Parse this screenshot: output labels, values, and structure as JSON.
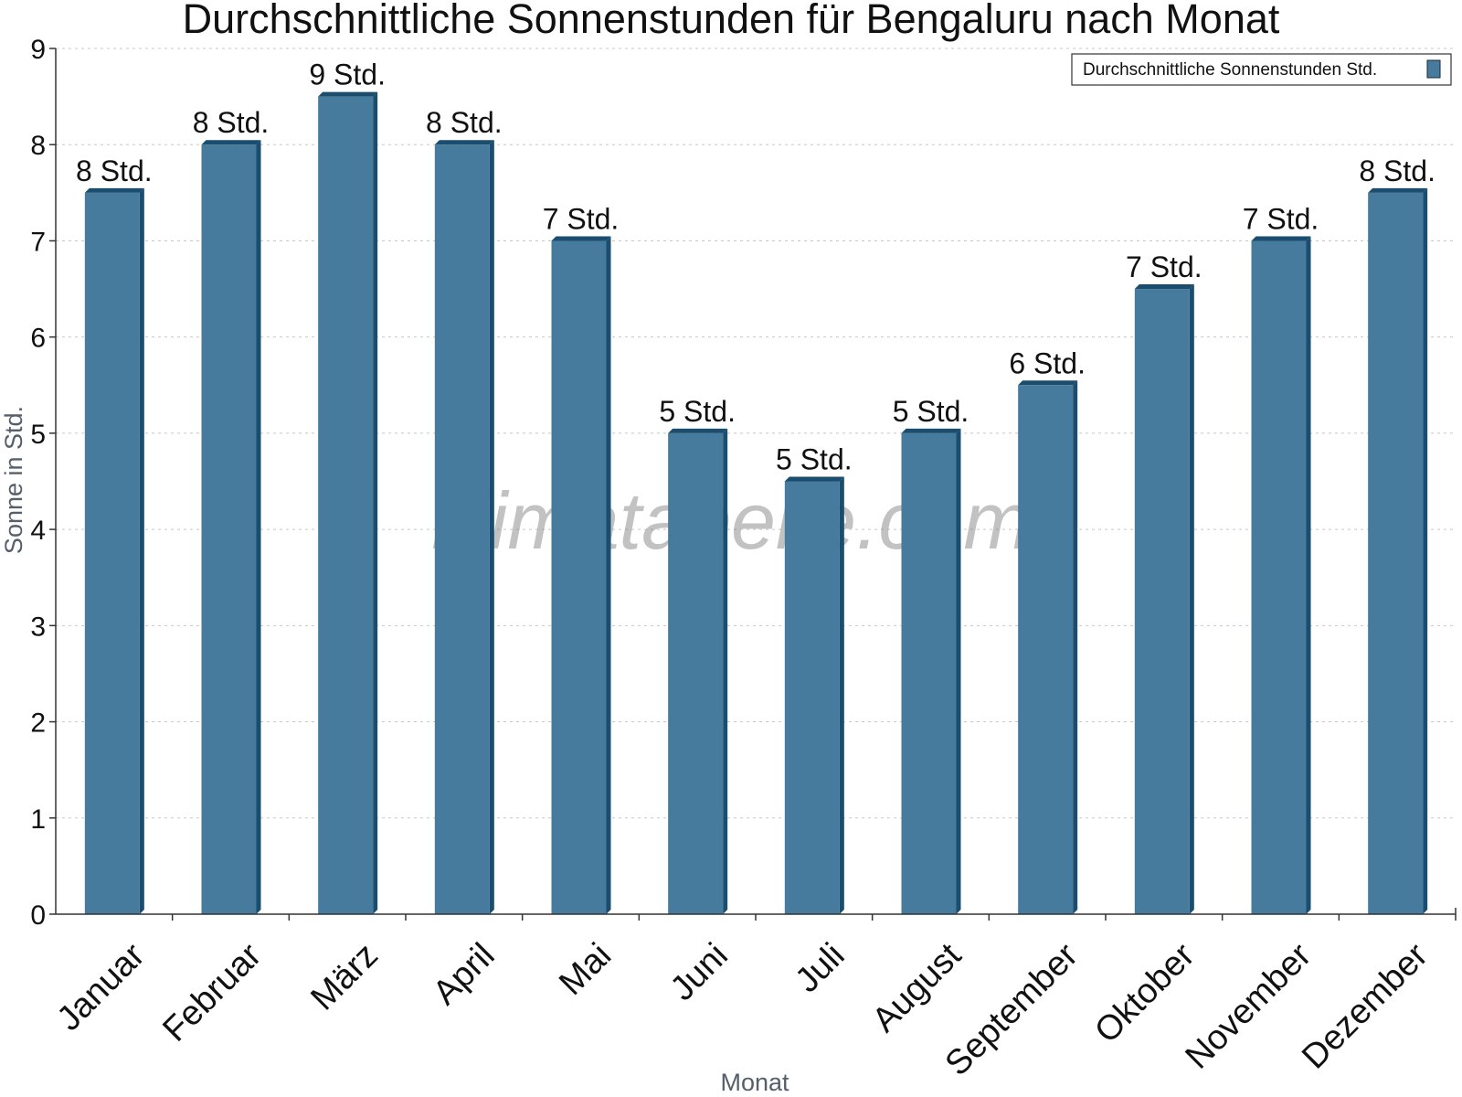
{
  "chart_data": {
    "type": "bar",
    "title": "Durchschnittliche Sonnenstunden für Bengaluru nach Monat",
    "xlabel": "Monat",
    "ylabel": "Sonne in Std.",
    "ylim": [
      0,
      9
    ],
    "yticks": [
      "0",
      "1",
      "2",
      "3",
      "4",
      "5",
      "6",
      "7",
      "8",
      "9"
    ],
    "grid": true,
    "legend_position": "top-right",
    "categories": [
      "Januar",
      "Februar",
      "März",
      "April",
      "Mai",
      "Juni",
      "Juli",
      "August",
      "September",
      "Oktober",
      "November",
      "Dezember"
    ],
    "series": [
      {
        "name": "Durchschnittliche Sonnenstunden Std.",
        "values": [
          7.5,
          8,
          8.5,
          8,
          7,
          5,
          4.5,
          5,
          5.5,
          6.5,
          7,
          7.5
        ],
        "labels": [
          "8 Std.",
          "8 Std.",
          "9 Std.",
          "8 Std.",
          "7 Std.",
          "5 Std.",
          "5 Std.",
          "5 Std.",
          "6 Std.",
          "7 Std.",
          "7 Std.",
          "8 Std."
        ],
        "color": "#477b9d",
        "side_color": "#1a4d6e"
      }
    ]
  },
  "watermark": "klimatabelle.com"
}
